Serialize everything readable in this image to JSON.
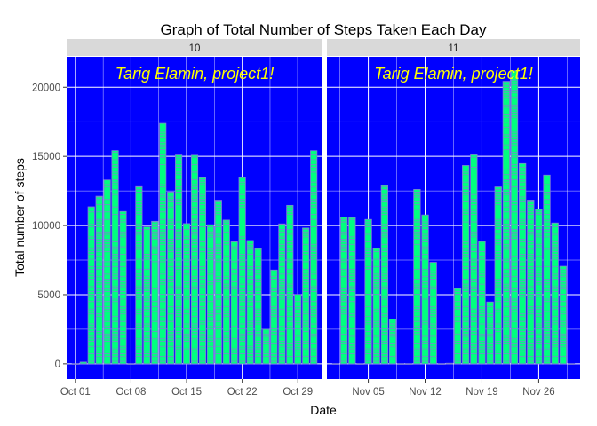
{
  "chart_data": {
    "type": "bar",
    "title": "Graph of Total Number of Steps Taken Each Day",
    "xlabel": "Date",
    "ylabel": "Total number of steps",
    "ylim": [
      -1100,
      22200
    ],
    "yticks": [
      0,
      5000,
      10000,
      15000,
      20000
    ],
    "grid": true,
    "colors": {
      "panel_bg": "#0000FF",
      "bar_fill": "#00FF7F",
      "bar_segment_outline": "#7F7FD5",
      "strip_bg": "#D9D9D9",
      "grid": "#FFFFFF",
      "annotation": "#FFFF00"
    },
    "facets": [
      {
        "strip_label": "10",
        "x_ticks": [
          "Oct 01",
          "Oct 08",
          "Oct 15",
          "Oct 22",
          "Oct 29"
        ],
        "annotation": "Tarig Elamin,    project1!",
        "days": [
          "Oct 01",
          "Oct 02",
          "Oct 03",
          "Oct 04",
          "Oct 05",
          "Oct 06",
          "Oct 07",
          "Oct 08",
          "Oct 09",
          "Oct 10",
          "Oct 11",
          "Oct 12",
          "Oct 13",
          "Oct 14",
          "Oct 15",
          "Oct 16",
          "Oct 17",
          "Oct 18",
          "Oct 19",
          "Oct 20",
          "Oct 21",
          "Oct 22",
          "Oct 23",
          "Oct 24",
          "Oct 25",
          "Oct 26",
          "Oct 27",
          "Oct 28",
          "Oct 29",
          "Oct 30",
          "Oct 31"
        ],
        "values": [
          0,
          126,
          11352,
          12116,
          13294,
          15420,
          11015,
          0,
          12811,
          9900,
          10304,
          17382,
          12426,
          15098,
          10139,
          15084,
          13452,
          10056,
          11829,
          10395,
          8821,
          13460,
          8918,
          8355,
          2492,
          6778,
          10119,
          11458,
          5018,
          9819,
          15414
        ]
      },
      {
        "strip_label": "11",
        "x_ticks": [
          "Nov 05",
          "Nov 12",
          "Nov 19",
          "Nov 26"
        ],
        "annotation": "Tarig Elamin,    project1!",
        "days": [
          "Nov 01",
          "Nov 02",
          "Nov 03",
          "Nov 04",
          "Nov 05",
          "Nov 06",
          "Nov 07",
          "Nov 08",
          "Nov 09",
          "Nov 10",
          "Nov 11",
          "Nov 12",
          "Nov 13",
          "Nov 14",
          "Nov 15",
          "Nov 16",
          "Nov 17",
          "Nov 18",
          "Nov 19",
          "Nov 20",
          "Nov 21",
          "Nov 22",
          "Nov 23",
          "Nov 24",
          "Nov 25",
          "Nov 26",
          "Nov 27",
          "Nov 28",
          "Nov 29",
          "Nov 30"
        ],
        "values": [
          0,
          10600,
          10571,
          0,
          10439,
          8334,
          12883,
          3219,
          0,
          0,
          12608,
          10765,
          7336,
          0,
          41,
          5441,
          14339,
          15110,
          8841,
          4472,
          12787,
          20427,
          21194,
          14478,
          11834,
          11162,
          13646,
          10183,
          7047,
          0
        ]
      }
    ]
  }
}
